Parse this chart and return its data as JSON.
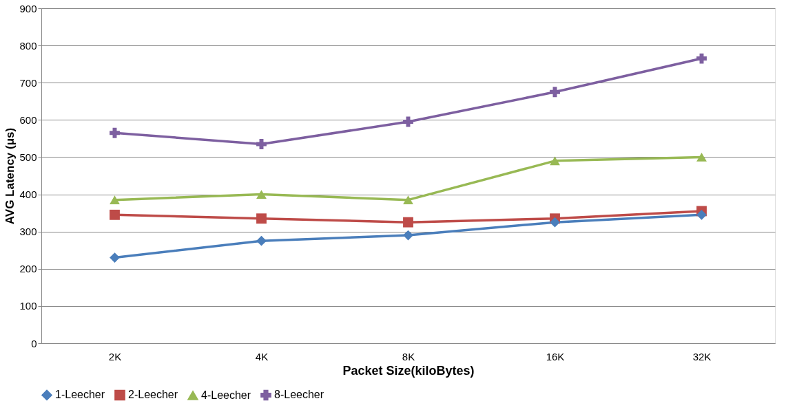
{
  "chart_data": {
    "type": "line",
    "xlabel": "Packet Size(kiloBytes)",
    "ylabel": "AVG Latency (μs)",
    "categories": [
      "2K",
      "4K",
      "8K",
      "16K",
      "32K"
    ],
    "series": [
      {
        "name": "1-Leecher",
        "color": "#4a7ebb",
        "marker": "diamond",
        "values": [
          230,
          275,
          290,
          325,
          345
        ]
      },
      {
        "name": "2-Leecher",
        "color": "#be4b48",
        "marker": "square",
        "values": [
          345,
          335,
          325,
          335,
          355
        ]
      },
      {
        "name": "4-Leecher",
        "color": "#98b954",
        "marker": "triangle",
        "values": [
          385,
          400,
          385,
          490,
          500
        ]
      },
      {
        "name": "8-Leecher",
        "color": "#7d5fa0",
        "marker": "cross",
        "values": [
          565,
          535,
          595,
          675,
          765
        ]
      }
    ],
    "ylim": [
      0,
      900
    ],
    "yticks": [
      0,
      100,
      200,
      300,
      400,
      500,
      600,
      700,
      800,
      900
    ],
    "grid": "y",
    "legend": "bottom",
    "line_style": "solid"
  }
}
